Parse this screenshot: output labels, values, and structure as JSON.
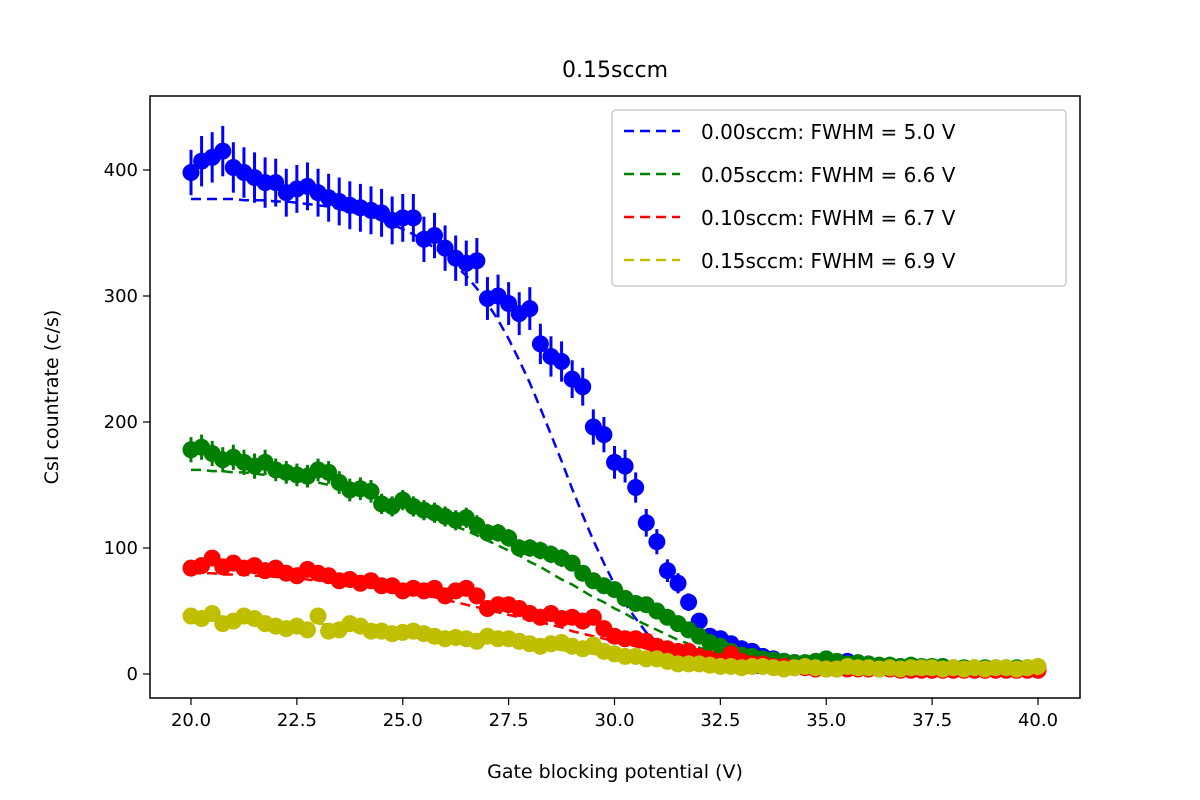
{
  "chart_data": {
    "type": "scatter",
    "title": "0.15sccm",
    "xlabel": "Gate blocking potential (V)",
    "ylabel": "CsI countrate (c/s)",
    "xlim": [
      18.8,
      41.0
    ],
    "ylim": [
      -20,
      460
    ],
    "xticks": [
      20.0,
      22.5,
      25.0,
      27.5,
      30.0,
      32.5,
      35.0,
      37.5,
      40.0
    ],
    "xtick_labels": [
      "20.0",
      "22.5",
      "25.0",
      "27.5",
      "30.0",
      "32.5",
      "35.0",
      "37.5",
      "40.0"
    ],
    "yticks": [
      0,
      100,
      200,
      300,
      400
    ],
    "ytick_labels": [
      "0",
      "100",
      "200",
      "300",
      "400"
    ],
    "grid": false,
    "legend_position": "top-right",
    "x": [
      20.0,
      20.25,
      20.5,
      20.75,
      21.0,
      21.25,
      21.5,
      21.75,
      22.0,
      22.25,
      22.5,
      22.75,
      23.0,
      23.25,
      23.5,
      23.75,
      24.0,
      24.25,
      24.5,
      24.75,
      25.0,
      25.25,
      25.5,
      25.75,
      26.0,
      26.25,
      26.5,
      26.75,
      27.0,
      27.25,
      27.5,
      27.75,
      28.0,
      28.25,
      28.5,
      28.75,
      29.0,
      29.25,
      29.5,
      29.75,
      30.0,
      30.25,
      30.5,
      30.75,
      31.0,
      31.25,
      31.5,
      31.75,
      32.0,
      32.25,
      32.5,
      32.75,
      33.0,
      33.25,
      33.5,
      33.75,
      34.0,
      34.25,
      34.5,
      34.75,
      35.0,
      35.25,
      35.5,
      35.75,
      36.0,
      36.25,
      36.5,
      36.75,
      37.0,
      37.25,
      37.5,
      37.75,
      38.0,
      38.25,
      38.5,
      38.75,
      39.0,
      39.25,
      39.5,
      39.75,
      40.0
    ],
    "series": [
      {
        "name": "0.00sccm",
        "legend_label": "0.00sccm: FWHM = 5.0 V",
        "color": "#0000ff",
        "values": [
          398,
          407,
          410,
          415,
          402,
          398,
          394,
          390,
          390,
          382,
          385,
          387,
          382,
          378,
          375,
          372,
          370,
          368,
          366,
          360,
          362,
          362,
          345,
          348,
          338,
          330,
          326,
          328,
          298,
          300,
          294,
          286,
          290,
          262,
          252,
          248,
          234,
          228,
          196,
          190,
          168,
          165,
          148,
          120,
          105,
          82,
          72,
          57,
          42,
          30,
          28,
          24,
          20,
          18,
          14,
          12,
          10,
          9,
          8,
          7,
          7,
          7,
          10,
          7,
          6,
          6,
          5,
          5,
          5,
          4,
          4,
          4,
          4,
          4,
          4,
          4,
          4,
          4,
          4,
          4,
          4
        ],
        "errors": [
          18,
          20,
          20,
          20,
          20,
          20,
          20,
          20,
          19,
          19,
          19,
          19,
          19,
          19,
          19,
          19,
          19,
          19,
          19,
          19,
          19,
          19,
          18,
          18,
          18,
          18,
          18,
          18,
          17,
          17,
          17,
          17,
          17,
          16,
          16,
          16,
          15,
          15,
          14,
          14,
          13,
          13,
          12,
          11,
          10,
          9,
          8,
          7,
          6,
          5,
          5,
          5,
          4,
          4,
          4,
          3,
          3,
          3,
          3,
          3,
          3,
          3,
          3,
          3,
          3,
          3,
          2,
          2,
          2,
          2,
          2,
          2,
          2,
          2,
          2,
          2,
          2,
          2,
          2,
          2,
          2
        ],
        "fit": [
          377,
          377,
          377,
          377,
          377,
          376,
          376,
          376,
          375,
          375,
          374,
          373,
          372,
          371,
          369,
          367,
          365,
          363,
          360,
          357,
          353,
          349,
          344,
          338,
          332,
          324,
          316,
          306,
          294,
          281,
          266,
          249,
          231,
          211,
          190,
          169,
          147,
          126,
          106,
          88,
          71,
          56,
          44,
          33,
          25,
          18,
          13,
          9,
          6,
          4,
          3,
          2,
          1,
          1,
          1,
          0,
          0,
          0,
          0,
          0,
          0,
          0,
          0,
          0,
          0,
          0,
          0,
          0,
          0,
          0,
          0,
          0,
          0,
          0,
          0,
          0,
          0,
          0,
          0,
          0,
          0
        ]
      },
      {
        "name": "0.05sccm",
        "legend_label": "0.05sccm: FWHM = 6.6 V",
        "color": "#008000",
        "values": [
          178,
          180,
          175,
          170,
          172,
          168,
          165,
          168,
          162,
          160,
          158,
          157,
          162,
          160,
          152,
          146,
          147,
          145,
          135,
          133,
          138,
          133,
          130,
          128,
          125,
          122,
          124,
          118,
          112,
          112,
          108,
          100,
          100,
          98,
          95,
          92,
          88,
          80,
          74,
          70,
          67,
          60,
          56,
          55,
          50,
          45,
          40,
          35,
          30,
          25,
          22,
          18,
          15,
          14,
          12,
          11,
          10,
          9,
          9,
          10,
          12,
          10,
          8,
          9,
          8,
          7,
          7,
          6,
          7,
          6,
          6,
          6,
          5,
          5,
          5,
          5,
          5,
          5,
          5,
          5,
          5
        ],
        "errors": [
          10,
          10,
          10,
          10,
          10,
          10,
          10,
          10,
          9,
          9,
          9,
          9,
          9,
          9,
          9,
          9,
          9,
          9,
          8,
          8,
          8,
          8,
          8,
          8,
          8,
          8,
          8,
          8,
          7,
          7,
          7,
          7,
          7,
          7,
          7,
          7,
          6,
          6,
          6,
          6,
          6,
          5,
          5,
          5,
          5,
          5,
          4,
          4,
          4,
          4,
          3,
          3,
          3,
          3,
          3,
          3,
          2,
          2,
          2,
          2,
          2,
          2,
          2,
          2,
          2,
          2,
          2,
          2,
          2,
          2,
          2,
          2,
          2,
          2,
          2,
          2,
          2,
          2,
          2,
          2,
          2
        ],
        "fit": [
          162,
          162,
          161,
          161,
          160,
          160,
          159,
          158,
          157,
          156,
          155,
          154,
          152,
          150,
          148,
          146,
          144,
          141,
          139,
          136,
          133,
          130,
          127,
          124,
          121,
          117,
          114,
          110,
          106,
          102,
          98,
          94,
          89,
          85,
          80,
          75,
          71,
          66,
          61,
          57,
          52,
          48,
          43,
          39,
          35,
          31,
          27,
          24,
          21,
          18,
          15,
          13,
          11,
          9,
          7,
          6,
          5,
          4,
          3,
          3,
          2,
          2,
          1,
          1,
          1,
          1,
          1,
          0,
          0,
          0,
          0,
          0,
          0,
          0,
          0,
          0,
          0,
          0,
          0,
          0,
          0
        ]
      },
      {
        "name": "0.10sccm",
        "legend_label": "0.10sccm: FWHM = 6.7 V",
        "color": "#ff0000",
        "values": [
          84,
          86,
          92,
          85,
          88,
          84,
          86,
          82,
          84,
          80,
          78,
          83,
          80,
          78,
          74,
          75,
          72,
          74,
          70,
          70,
          66,
          68,
          66,
          68,
          62,
          66,
          68,
          62,
          52,
          55,
          55,
          52,
          48,
          45,
          48,
          44,
          45,
          42,
          45,
          36,
          30,
          28,
          28,
          26,
          22,
          20,
          18,
          18,
          14,
          12,
          10,
          16,
          10,
          8,
          8,
          6,
          6,
          5,
          5,
          4,
          4,
          4,
          4,
          4,
          4,
          4,
          4,
          3,
          3,
          3,
          3,
          3,
          3,
          3,
          3,
          3,
          3,
          3,
          3,
          3,
          3
        ],
        "errors": [
          4,
          4,
          4,
          4,
          4,
          4,
          4,
          4,
          4,
          4,
          4,
          4,
          4,
          4,
          4,
          4,
          4,
          4,
          4,
          4,
          4,
          4,
          4,
          4,
          4,
          4,
          4,
          4,
          3,
          3,
          3,
          3,
          3,
          3,
          3,
          3,
          3,
          3,
          3,
          3,
          3,
          3,
          3,
          3,
          2,
          2,
          2,
          2,
          2,
          2,
          2,
          2,
          2,
          2,
          2,
          2,
          2,
          2,
          2,
          2,
          2,
          2,
          2,
          2,
          2,
          2,
          2,
          2,
          2,
          2,
          2,
          2,
          2,
          2,
          2,
          2,
          2,
          2,
          2,
          2,
          2
        ],
        "fit": [
          80,
          80,
          80,
          79,
          79,
          79,
          78,
          78,
          77,
          77,
          76,
          75,
          74,
          74,
          73,
          72,
          71,
          69,
          68,
          67,
          65,
          64,
          62,
          61,
          59,
          57,
          55,
          53,
          51,
          49,
          47,
          45,
          43,
          41,
          39,
          37,
          34,
          32,
          30,
          28,
          26,
          24,
          22,
          20,
          18,
          16,
          14,
          12,
          11,
          9,
          8,
          7,
          6,
          5,
          4,
          3,
          3,
          2,
          2,
          1,
          1,
          1,
          1,
          0,
          0,
          0,
          0,
          0,
          0,
          0,
          0,
          0,
          0,
          0,
          0,
          0,
          0,
          0,
          0,
          0,
          0
        ]
      },
      {
        "name": "0.15sccm",
        "legend_label": "0.15sccm: FWHM = 6.9 V",
        "color": "#bfbf00",
        "values": [
          46,
          44,
          48,
          40,
          42,
          46,
          44,
          40,
          38,
          36,
          38,
          35,
          46,
          34,
          35,
          40,
          38,
          34,
          34,
          32,
          33,
          34,
          32,
          30,
          28,
          29,
          28,
          26,
          30,
          28,
          28,
          26,
          24,
          22,
          24,
          25,
          22,
          20,
          23,
          18,
          16,
          14,
          14,
          12,
          12,
          10,
          8,
          8,
          8,
          7,
          6,
          6,
          5,
          6,
          6,
          5,
          4,
          5,
          6,
          5,
          4,
          4,
          6,
          5,
          5,
          4,
          5,
          4,
          5,
          5,
          5,
          4,
          5,
          4,
          5,
          4,
          5,
          5,
          4,
          5,
          6
        ],
        "errors": [
          3,
          3,
          3,
          3,
          3,
          3,
          3,
          3,
          3,
          3,
          3,
          3,
          3,
          3,
          3,
          3,
          3,
          3,
          3,
          3,
          3,
          3,
          3,
          3,
          3,
          3,
          3,
          3,
          3,
          3,
          3,
          3,
          2,
          2,
          2,
          2,
          2,
          2,
          2,
          2,
          2,
          2,
          2,
          2,
          2,
          2,
          2,
          2,
          2,
          2,
          2,
          2,
          2,
          2,
          2,
          2,
          2,
          2,
          2,
          2,
          2,
          2,
          2,
          2,
          2,
          2,
          2,
          2,
          2,
          2,
          2,
          2,
          2,
          2,
          2,
          2,
          2,
          2,
          2,
          2,
          2
        ],
        "fit": [
          44,
          44,
          44,
          43,
          43,
          43,
          42,
          42,
          42,
          41,
          41,
          40,
          40,
          39,
          39,
          38,
          37,
          37,
          36,
          35,
          34,
          33,
          33,
          32,
          31,
          30,
          29,
          28,
          27,
          26,
          25,
          24,
          22,
          21,
          20,
          19,
          18,
          17,
          16,
          15,
          14,
          13,
          12,
          11,
          10,
          9,
          8,
          7,
          6,
          5,
          5,
          4,
          4,
          3,
          3,
          2,
          2,
          2,
          1,
          1,
          1,
          1,
          1,
          0,
          0,
          0,
          0,
          0,
          0,
          0,
          0,
          0,
          0,
          0,
          0,
          0,
          0,
          0,
          0,
          0,
          0
        ]
      }
    ]
  }
}
